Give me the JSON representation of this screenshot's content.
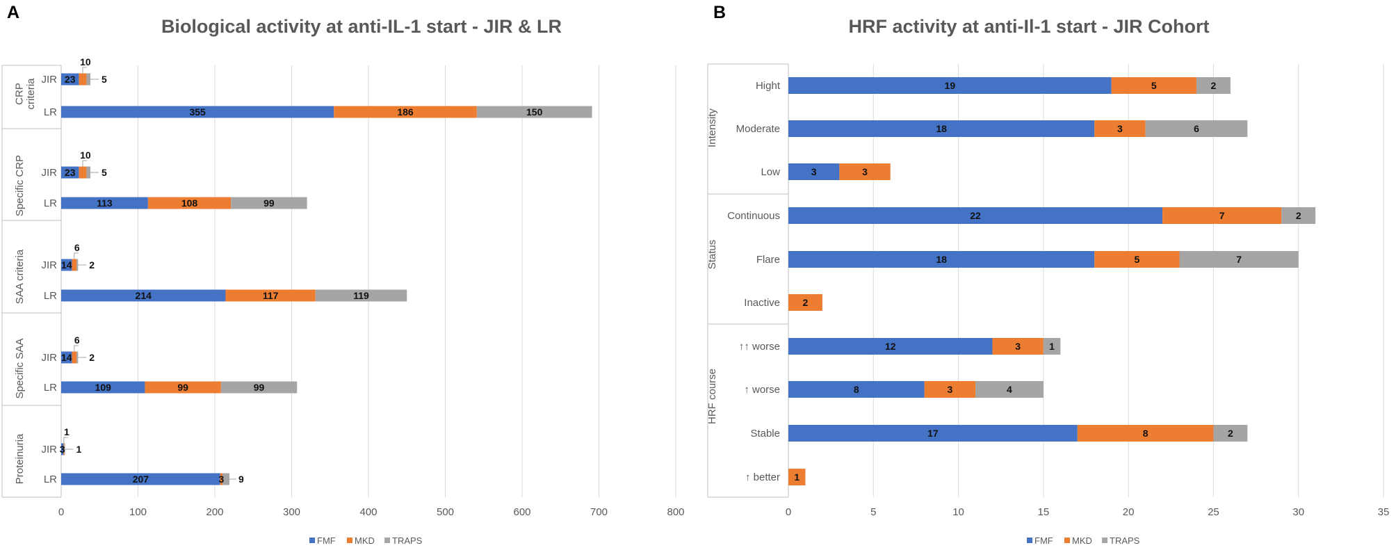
{
  "colors": {
    "FMF": "#4472c4",
    "MKD": "#ed7d31",
    "TRAPS": "#a5a5a5",
    "grid": "#d9d9d9",
    "axis": "#bfbfbf"
  },
  "chart_data": [
    {
      "panel": "A",
      "type": "bar",
      "orientation": "horizontal",
      "stacked": true,
      "title": "Biological activity at anti-IL-1 start - JIR & LR",
      "xlim": [
        0,
        800
      ],
      "xticks": [
        0,
        100,
        200,
        300,
        400,
        500,
        600,
        700,
        800
      ],
      "legend": [
        "FMF",
        "MKD",
        "TRAPS"
      ],
      "legend_position": "bottom",
      "groups": [
        {
          "label": "CRP criteria",
          "rows": [
            {
              "label": "JIR",
              "values": [
                23,
                10,
                5
              ]
            },
            {
              "label": "LR",
              "values": [
                355,
                186,
                150
              ]
            }
          ]
        },
        {
          "label": "Specific CRP",
          "rows": [
            {
              "label": "JIR",
              "values": [
                23,
                10,
                5
              ]
            },
            {
              "label": "LR",
              "values": [
                113,
                108,
                99
              ]
            }
          ]
        },
        {
          "label": "SAA criteria",
          "rows": [
            {
              "label": "JIR",
              "values": [
                14,
                6,
                2
              ]
            },
            {
              "label": "LR",
              "values": [
                214,
                117,
                119
              ]
            }
          ]
        },
        {
          "label": "Specific SAA",
          "rows": [
            {
              "label": "JIR",
              "values": [
                14,
                6,
                2
              ]
            },
            {
              "label": "LR",
              "values": [
                109,
                99,
                99
              ]
            }
          ]
        },
        {
          "label": "Proteinuria",
          "rows": [
            {
              "label": "JIR",
              "values": [
                3,
                1,
                1
              ]
            },
            {
              "label": "LR",
              "values": [
                207,
                3,
                9
              ]
            }
          ]
        }
      ]
    },
    {
      "panel": "B",
      "type": "bar",
      "orientation": "horizontal",
      "stacked": true,
      "title": "HRF activity at anti-Il-1 start - JIR Cohort",
      "xlim": [
        0,
        35
      ],
      "xticks": [
        0,
        5,
        10,
        15,
        20,
        25,
        30,
        35
      ],
      "legend": [
        "FMF",
        "MKD",
        "TRAPS"
      ],
      "legend_position": "bottom",
      "groups": [
        {
          "label": "Intensity",
          "rows": [
            {
              "label": "Hight",
              "values": [
                19,
                5,
                2
              ]
            },
            {
              "label": "Moderate",
              "values": [
                18,
                3,
                6
              ]
            },
            {
              "label": "Low",
              "values": [
                3,
                3,
                0
              ]
            }
          ]
        },
        {
          "label": "Status",
          "rows": [
            {
              "label": "Continuous",
              "values": [
                22,
                7,
                2
              ]
            },
            {
              "label": "Flare",
              "values": [
                18,
                5,
                7
              ]
            },
            {
              "label": "Inactive",
              "values": [
                0,
                2,
                0
              ]
            }
          ]
        },
        {
          "label": "HRF course",
          "rows": [
            {
              "label": "↑↑ worse",
              "values": [
                12,
                3,
                1
              ]
            },
            {
              "label": "↑ worse",
              "values": [
                8,
                3,
                4
              ]
            },
            {
              "label": "Stable",
              "values": [
                17,
                8,
                2
              ]
            },
            {
              "label": "↑ better",
              "values": [
                0,
                1,
                0
              ]
            }
          ]
        }
      ]
    }
  ]
}
